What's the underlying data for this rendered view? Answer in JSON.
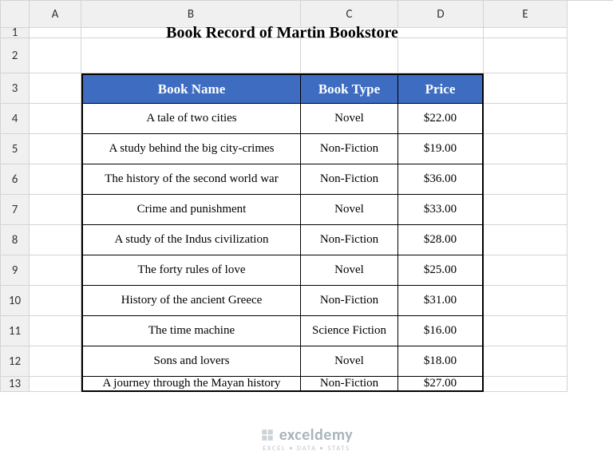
{
  "columns": [
    "A",
    "B",
    "C",
    "D",
    "E"
  ],
  "rowCount": 13,
  "title": "Book Record of Martin Bookstore",
  "headerBg": "#3d6cc0",
  "table": {
    "headers": [
      "Book Name",
      "Book Type",
      "Price"
    ],
    "rows": [
      [
        "A tale of two cities",
        "Novel",
        "$22.00"
      ],
      [
        "A study behind the big city-crimes",
        "Non-Fiction",
        "$19.00"
      ],
      [
        "The history of the second world war",
        "Non-Fiction",
        "$36.00"
      ],
      [
        "Crime and punishment",
        "Novel",
        "$33.00"
      ],
      [
        "A study of the Indus civilization",
        "Non-Fiction",
        "$28.00"
      ],
      [
        "The forty rules of love",
        "Novel",
        "$25.00"
      ],
      [
        "History of the ancient Greece",
        "Non-Fiction",
        "$31.00"
      ],
      [
        "The time machine",
        "Science Fiction",
        "$16.00"
      ],
      [
        "Sons and lovers",
        "Novel",
        "$18.00"
      ],
      [
        "A journey through the Mayan history",
        "Non-Fiction",
        "$27.00"
      ]
    ]
  },
  "watermark": {
    "brand": "exceldemy",
    "tagline": "EXCEL • DATA • STATS"
  }
}
